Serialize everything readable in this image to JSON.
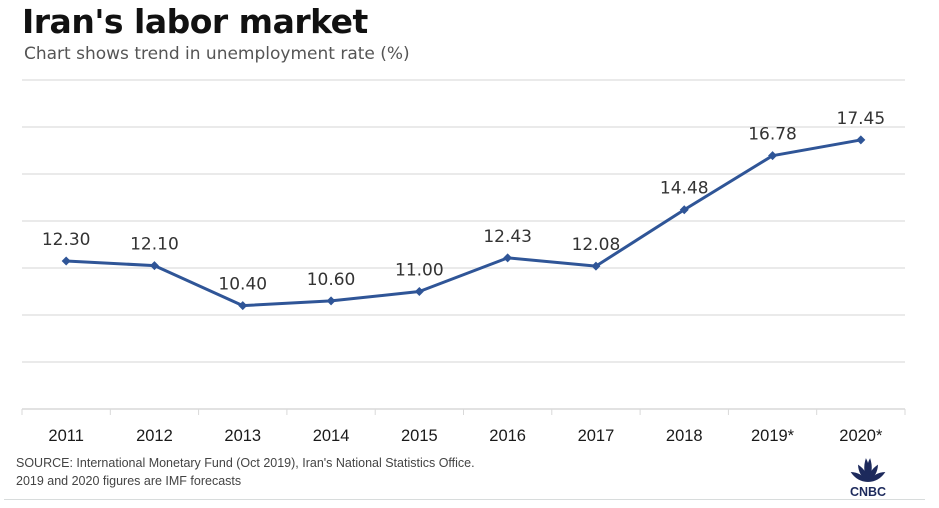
{
  "header": {
    "title": "Iran's labor market",
    "subtitle": "Chart shows trend in unemployment rate (%)"
  },
  "footer": {
    "source_line1": "SOURCE: International Monetary Fund (Oct 2019), Iran's National Statistics Office.",
    "source_line2": "2019 and 2020 figures are IMF forecasts",
    "logo_text": "CNBC",
    "logo_icon": "nbc-peacock-icon"
  },
  "colors": {
    "line": "#2f5597",
    "grid": "#e3e3e3",
    "label": "#333333",
    "logo": "#1d2a5c"
  },
  "chart_data": {
    "type": "line",
    "title": "Iran's labor market",
    "subtitle": "Chart shows trend in unemployment rate (%)",
    "xlabel": "",
    "ylabel": "Unemployment rate (%)",
    "categories": [
      "2011",
      "2012",
      "2013",
      "2014",
      "2015",
      "2016",
      "2017",
      "2018",
      "2019*",
      "2020*"
    ],
    "series": [
      {
        "name": "Unemployment rate",
        "values": [
          12.3,
          12.1,
          10.4,
          10.6,
          11.0,
          12.43,
          12.08,
          14.48,
          16.78,
          17.45
        ],
        "labels": [
          "12.30",
          "12.10",
          "10.40",
          "10.60",
          "11.00",
          "12.43",
          "12.08",
          "14.48",
          "16.78",
          "17.45"
        ],
        "marker": "diamond"
      }
    ],
    "ylim": [
      6,
      20
    ],
    "ygrid_step": 2,
    "y_tick_labels_shown": false,
    "grid": true,
    "legend": "none"
  }
}
